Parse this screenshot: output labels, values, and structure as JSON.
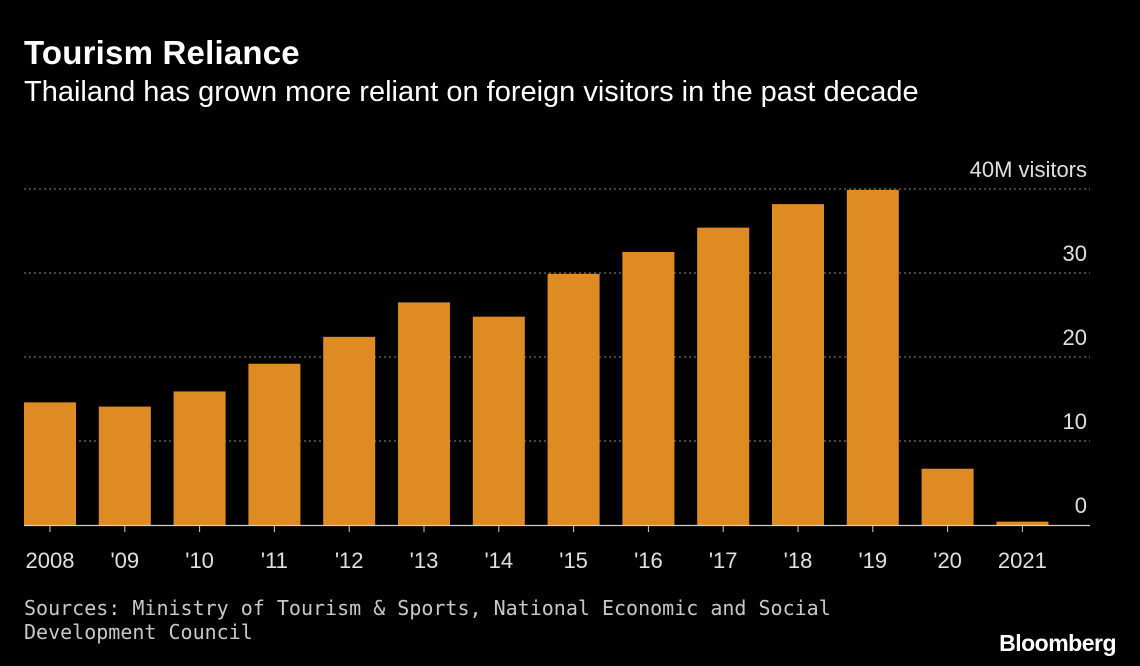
{
  "title": "Tourism Reliance",
  "subtitle": "Thailand has grown more reliant on foreign visitors in the past decade",
  "source": "Sources: Ministry of Tourism & Sports, National Economic and Social Development Council",
  "brand": "Bloomberg",
  "colors": {
    "bar": "#DE8B24",
    "background": "#000000",
    "grid": "#8a8a8a"
  },
  "chart_data": {
    "type": "bar",
    "categories": [
      "2008",
      "'09",
      "'10",
      "'11",
      "'12",
      "'13",
      "'14",
      "'15",
      "'16",
      "'17",
      "'18",
      "'19",
      "'20",
      "2021"
    ],
    "values": [
      14.6,
      14.1,
      15.9,
      19.2,
      22.4,
      26.5,
      24.8,
      29.9,
      32.5,
      35.4,
      38.2,
      39.9,
      6.7,
      0.4
    ],
    "ylim": [
      0,
      40
    ],
    "yticks": [
      0,
      10,
      20,
      30,
      40
    ],
    "ytick_labels": [
      "0",
      "10",
      "20",
      "30",
      "40M visitors"
    ],
    "grid": true,
    "ylabel": ""
  }
}
